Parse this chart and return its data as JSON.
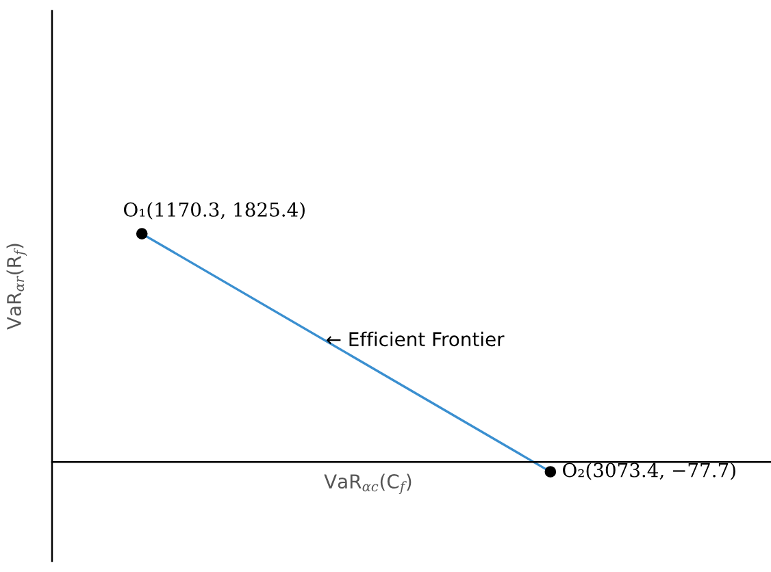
{
  "chart_data": {
    "type": "line",
    "xlabel": "VaR$_{αc}$(C$_{f}$)",
    "ylabel": "VaR$_{αr}$(R$_{f}$)",
    "categories": [
      null,
      null
    ],
    "series": [
      {
        "color": "#3a8fd0",
        "values": [
          1825.4,
          -77.7
        ],
        "value_labels": [
          "O₁(1170.3, 1825.4)",
          "O₂(3073.4, −77.7)"
        ]
      }
    ],
    "marker": "circle",
    "annotations": [
      "← Efficient Frontier"
    ],
    "tick_labels": false
  }
}
